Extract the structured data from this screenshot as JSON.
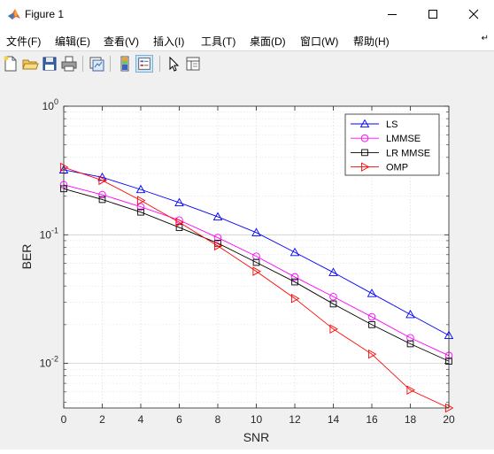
{
  "window": {
    "title": "Figure 1",
    "controls": [
      "minimize",
      "maximize",
      "close"
    ]
  },
  "menu": {
    "items": [
      {
        "label": "文件(F)"
      },
      {
        "label": "编辑(E)"
      },
      {
        "label": "查看(V)"
      },
      {
        "label": "插入(I)"
      },
      {
        "label": "工具(T)"
      },
      {
        "label": "桌面(D)"
      },
      {
        "label": "窗口(W)"
      },
      {
        "label": "帮助(H)"
      }
    ],
    "overflow_icon": "dock-arrow-icon"
  },
  "toolbar": {
    "buttons": [
      "new-figure-icon",
      "open-file-icon",
      "save-icon",
      "print-icon",
      "link-plot-icon",
      "insert-colorbar-icon",
      "insert-legend-icon",
      "edit-plot-icon",
      "property-inspector-icon"
    ],
    "active": "insert-legend-icon"
  },
  "chart_data": {
    "type": "line",
    "xlabel": "SNR",
    "ylabel": "BER",
    "title": "",
    "x": [
      0,
      2,
      4,
      6,
      8,
      10,
      12,
      14,
      16,
      18,
      20
    ],
    "xlim": [
      0,
      20
    ],
    "ylim": [
      0.0045,
      1
    ],
    "yscale": "log",
    "grid": true,
    "minor_grid": true,
    "legend_position": "top-right",
    "x_ticks": [
      "0",
      "2",
      "4",
      "6",
      "8",
      "10",
      "12",
      "14",
      "16",
      "18",
      "20"
    ],
    "y_ticks": [
      {
        "base": "10",
        "exp": "0",
        "value": 1
      },
      {
        "base": "10",
        "exp": "-1",
        "value": 0.1
      },
      {
        "base": "10",
        "exp": "-2",
        "value": 0.01
      }
    ],
    "series": [
      {
        "name": "LS",
        "color": "#0000ff",
        "marker": "triangle-up",
        "values": [
          0.32,
          0.28,
          0.225,
          0.178,
          0.138,
          0.104,
          0.073,
          0.051,
          0.035,
          0.024,
          0.0165
        ]
      },
      {
        "name": "LMMSE",
        "color": "#ff00ff",
        "marker": "circle",
        "values": [
          0.245,
          0.205,
          0.165,
          0.13,
          0.095,
          0.068,
          0.047,
          0.033,
          0.023,
          0.0158,
          0.0115
        ]
      },
      {
        "name": "LR MMSE",
        "color": "#000000",
        "marker": "square",
        "values": [
          0.228,
          0.188,
          0.15,
          0.114,
          0.086,
          0.061,
          0.043,
          0.029,
          0.02,
          0.0142,
          0.0104
        ]
      },
      {
        "name": "OMP",
        "color": "#ff0000",
        "marker": "triangle-right",
        "values": [
          0.335,
          0.265,
          0.185,
          0.125,
          0.082,
          0.052,
          0.032,
          0.0185,
          0.0118,
          0.0062,
          0.0045
        ]
      }
    ]
  }
}
